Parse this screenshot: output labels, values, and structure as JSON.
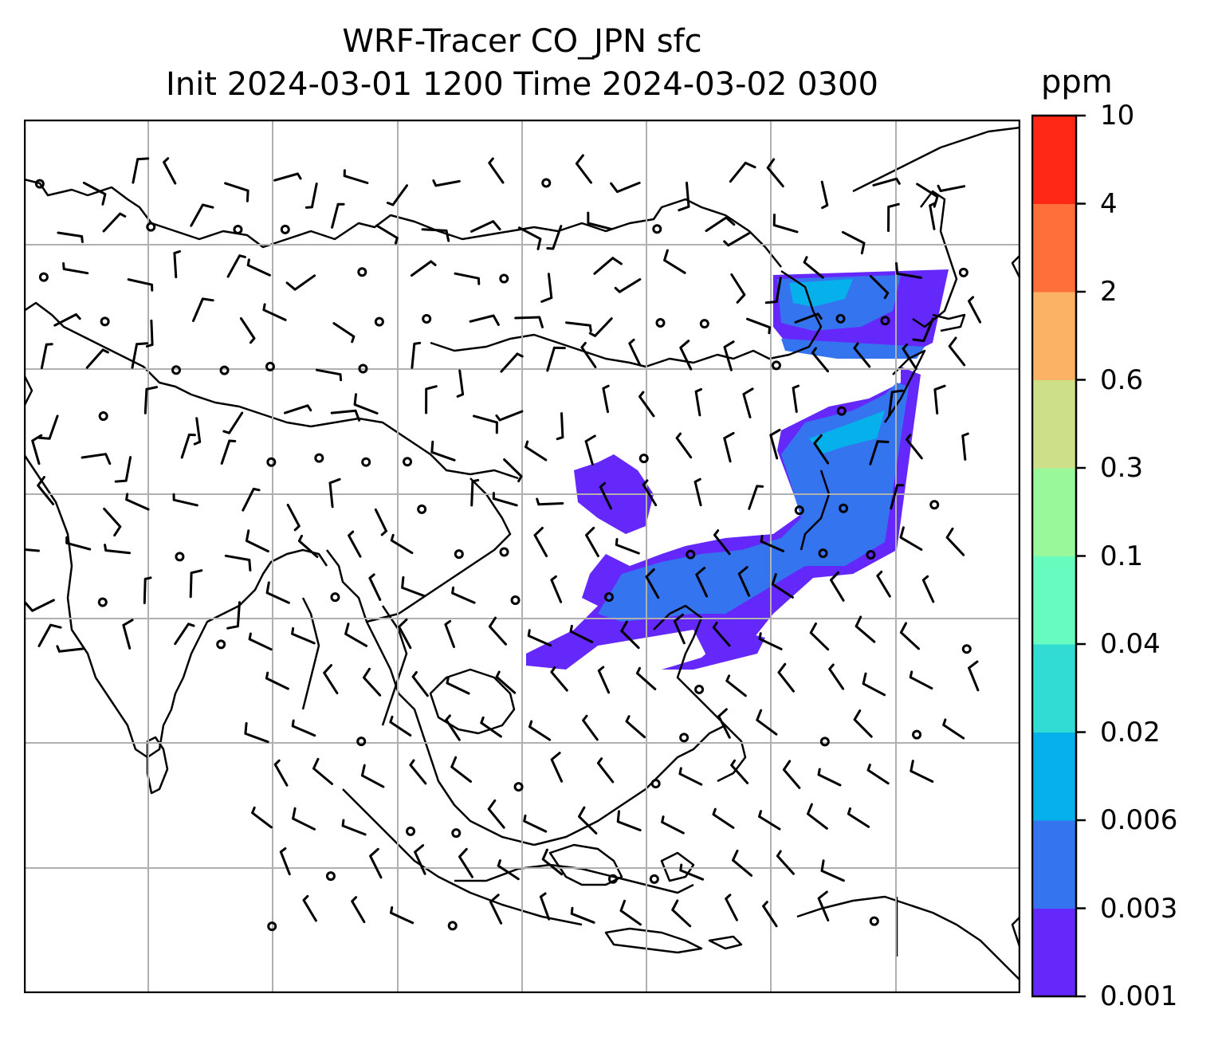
{
  "title": {
    "line1": "WRF-Tracer CO_JPN sfc",
    "line2": "Init 2024-03-01 1200 Time 2024-03-02 0300"
  },
  "colorbar": {
    "unit": "ppm",
    "ticks": [
      "0.001",
      "0.003",
      "0.006",
      "0.02",
      "0.04",
      "0.1",
      "0.3",
      "0.6",
      "2",
      "4",
      "10"
    ],
    "colors": [
      "#6528fb",
      "#3574ef",
      "#06b1eb",
      "#30dcd4",
      "#67fbbf",
      "#99f99a",
      "#cddf89",
      "#fcb264",
      "#fe6f3a",
      "#ff2816"
    ]
  },
  "map": {
    "gridlines": true,
    "wind_barbs": true,
    "tracer_color_min": "#6528fb"
  }
}
